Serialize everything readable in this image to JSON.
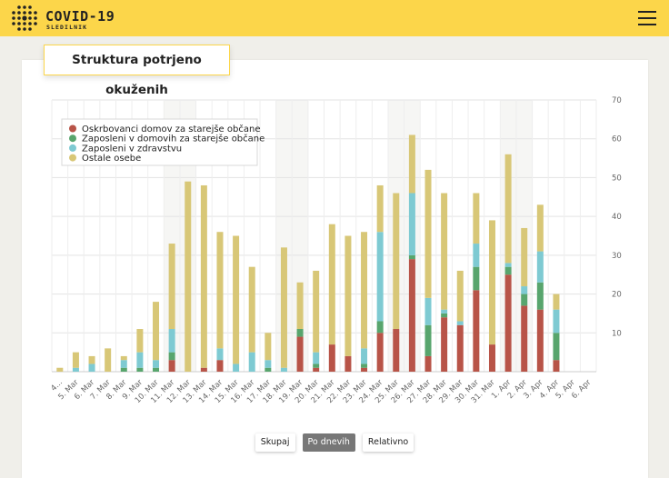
{
  "header": {
    "brand": "COVID-19",
    "brand_sub": "SLEDILNIK"
  },
  "card": {
    "title": "Struktura potrjeno okuženih"
  },
  "buttons": [
    "Skupaj",
    "Po dnevih",
    "Relativno"
  ],
  "active_button": "Po dnevih",
  "colors": {
    "accent": "#fcd64a",
    "series": [
      "#b85448",
      "#58a56d",
      "#7ecad2",
      "#d8c777"
    ]
  },
  "chart_data": {
    "type": "bar",
    "stacked": true,
    "categories": [
      "4. Mar",
      "5. Mar",
      "6. Mar",
      "7. Mar",
      "8. Mar",
      "9. Mar",
      "10. Mar",
      "11. Mar",
      "12. Mar",
      "13. Mar",
      "14. Mar",
      "15. Mar",
      "16. Mar",
      "17. Mar",
      "18. Mar",
      "19. Mar",
      "20. Mar",
      "21. Mar",
      "22. Mar",
      "23. Mar",
      "24. Mar",
      "25. Mar",
      "26. Mar",
      "27. Mar",
      "28. Mar",
      "29. Mar",
      "30. Mar",
      "31. Mar",
      "1. Apr",
      "2. Apr",
      "3. Apr",
      "4. Apr",
      "5. Apr",
      "6. Apr"
    ],
    "xtick_labels": [
      "4...",
      "5. Mar",
      "6. Mar",
      "7. Mar",
      "8. Mar",
      "9. Mar",
      "10. Mar",
      "11. Mar",
      "12. Mar",
      "13. Mar",
      "14. Mar",
      "15. Mar",
      "16. Mar",
      "17. Mar",
      "18. Mar",
      "19. Mar",
      "20. Mar",
      "21. Mar",
      "22. Mar",
      "23. Mar",
      "24. Mar",
      "25. Mar",
      "26. Mar",
      "27. Mar",
      "28. Mar",
      "29. Mar",
      "30. Mar",
      "31. Mar",
      "1. Apr",
      "2. Apr",
      "3. Apr",
      "4. Apr",
      "5. Apr",
      "6. Apr"
    ],
    "series": [
      {
        "name": "Oskrbovanci domov za starejše občane",
        "values": [
          0,
          0,
          0,
          0,
          0,
          0,
          0,
          3,
          0,
          1,
          3,
          0,
          0,
          0,
          0,
          9,
          1,
          7,
          4,
          1,
          10,
          11,
          29,
          4,
          14,
          12,
          21,
          7,
          25,
          17,
          16,
          3,
          0,
          0
        ]
      },
      {
        "name": "Zaposleni v domovih za starejše občane",
        "values": [
          0,
          0,
          0,
          0,
          1,
          1,
          1,
          2,
          0,
          0,
          0,
          0,
          0,
          1,
          0,
          2,
          1,
          0,
          0,
          1,
          3,
          0,
          1,
          8,
          1,
          0,
          6,
          0,
          2,
          3,
          7,
          7,
          0,
          0
        ]
      },
      {
        "name": "Zaposleni v zdravstvu",
        "values": [
          0,
          1,
          2,
          0,
          2,
          4,
          2,
          6,
          0,
          0,
          3,
          2,
          5,
          2,
          1,
          0,
          3,
          0,
          0,
          4,
          23,
          0,
          16,
          7,
          1,
          1,
          6,
          0,
          1,
          2,
          8,
          6,
          0,
          0
        ]
      },
      {
        "name": "Ostale osebe",
        "values": [
          1,
          4,
          2,
          6,
          1,
          6,
          15,
          22,
          49,
          47,
          30,
          33,
          22,
          7,
          31,
          12,
          21,
          31,
          31,
          30,
          12,
          35,
          15,
          33,
          30,
          13,
          13,
          32,
          28,
          15,
          12,
          4,
          0,
          0
        ]
      }
    ],
    "ylim": [
      0,
      70
    ],
    "yticks": [
      10,
      20,
      30,
      40,
      50,
      60,
      70
    ],
    "grid": true,
    "legend_position": "top-left"
  }
}
